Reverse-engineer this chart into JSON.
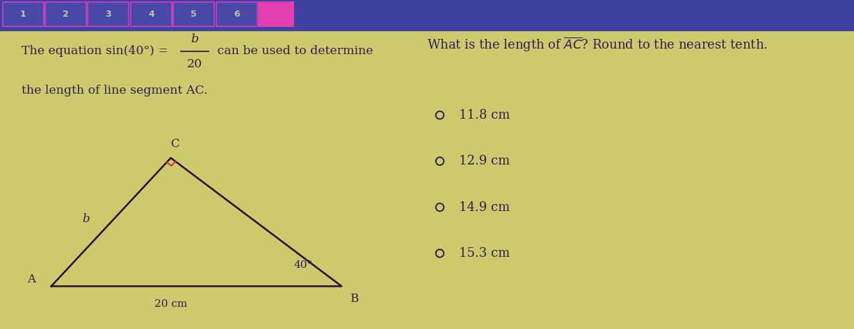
{
  "bg_color": "#cfc96e",
  "top_bar_color": "#4040a0",
  "tab_border_color": "#d040c0",
  "tab_bg_color": "#4848a8",
  "tab_text_color": "#c8c0a0",
  "pink_tab_color": "#e040b0",
  "text_color": "#2a2050",
  "tab_labels": [
    "1",
    "2",
    "3",
    "4",
    "5",
    "6"
  ],
  "left_text_line1_prefix": "The equation sin(40°) = ",
  "left_text_frac_num": "b",
  "left_text_frac_den": "20",
  "left_text_suffix": " can be used to determine",
  "left_text_line2": "the length of line segment AC.",
  "right_question": "What is the length of $\\overline{AC}$? Round to the nearest tenth.",
  "answer_choices": [
    "11.8 cm",
    "12.9 cm",
    "14.9 cm",
    "15.3 cm"
  ],
  "triangle": {
    "A": [
      0.06,
      0.13
    ],
    "B": [
      0.4,
      0.13
    ],
    "C": [
      0.2,
      0.52
    ],
    "right_angle_color": "#cc3333"
  }
}
